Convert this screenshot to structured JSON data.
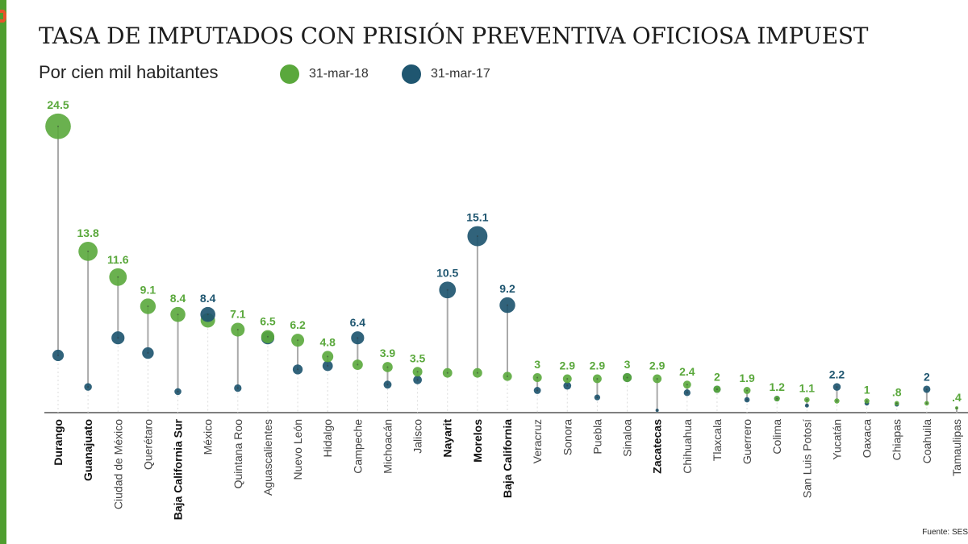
{
  "title": "TASA DE IMPUTADOS CON PRISIÓN PREVENTIVA OFICIOSA IMPUEST",
  "subtitle": "Por cien mil habitantes",
  "source": "Fuente: SES",
  "colors": {
    "2018": "#5aa83c",
    "2017": "#1f5670",
    "stem": "#a9a9a9",
    "axis": "#555555"
  },
  "chart_data": {
    "type": "dot-plot",
    "ylim": [
      0,
      25
    ],
    "grid": false,
    "legend_position": "top",
    "categories": [
      "Durango",
      "Guanajuato",
      "Ciudad de México",
      "Querétaro",
      "Baja California Sur",
      "México",
      "Quintana Roo",
      "Aguascalientes",
      "Nuevo León",
      "Hidalgo",
      "Campeche",
      "Michoacán",
      "Jalisco",
      "Nayarit",
      "Morelos",
      "Baja California",
      "Veracruz",
      "Sonora",
      "Puebla",
      "Sinaloa",
      "Zacatecas",
      "Chihuahua",
      "Tlaxcala",
      "Guerrero",
      "Colima",
      "San Luis Potosí",
      "Yucatán",
      "Oaxaca",
      "Chiapas",
      "Coahuila",
      "Tamaulipas"
    ],
    "bold_categories": [
      "Durango",
      "Guanajuato",
      "Baja California Sur",
      "Nayarit",
      "Morelos",
      "Baja California",
      "Zacatecas"
    ],
    "data_labels": [
      "24.5",
      "13.8",
      "11.6",
      "9.1",
      "8.4",
      "8.4",
      "7.1",
      "6.5",
      "6.2",
      "4.8",
      "6.4",
      "3.9",
      "3.5",
      "10.5",
      "15.1",
      "9.2",
      "3",
      "2.9",
      "2.9",
      "3",
      "2.9",
      "2.4",
      "2",
      "1.9",
      "1.2",
      "1.1",
      "2.2",
      "1",
      ".8",
      "2",
      ".4"
    ],
    "series": [
      {
        "name": "31-mar-18",
        "values": [
          24.5,
          13.8,
          11.6,
          9.1,
          8.4,
          7.9,
          7.1,
          6.5,
          6.2,
          4.8,
          4.1,
          3.9,
          3.5,
          3.4,
          3.4,
          3.1,
          3,
          2.9,
          2.9,
          3,
          2.9,
          2.4,
          2,
          1.9,
          1.2,
          1.1,
          1.0,
          1,
          0.8,
          0.8,
          0.4
        ]
      },
      {
        "name": "31-mar-17",
        "values": [
          4.9,
          2.2,
          6.4,
          5.1,
          1.8,
          8.4,
          2.1,
          6.4,
          3.7,
          4.0,
          6.4,
          2.4,
          2.8,
          10.5,
          15.1,
          9.2,
          1.9,
          2.3,
          1.3,
          3,
          0.2,
          1.7,
          2,
          1.1,
          1.2,
          0.6,
          2.2,
          0.8,
          0.7,
          2,
          0
        ]
      }
    ]
  }
}
